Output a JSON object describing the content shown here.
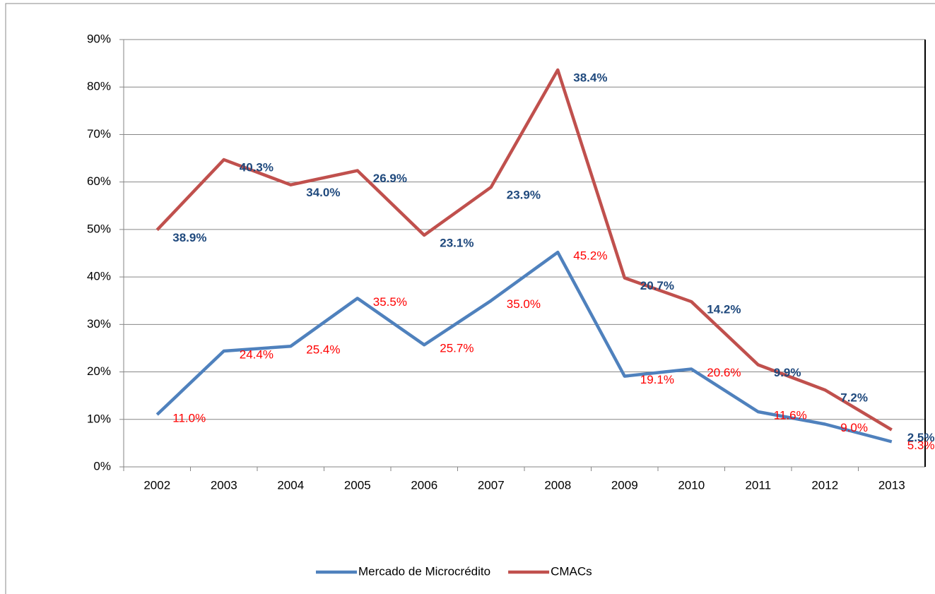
{
  "chart_data": {
    "type": "line",
    "stacked": true,
    "categories": [
      "2002",
      "2003",
      "2004",
      "2005",
      "2006",
      "2007",
      "2008",
      "2009",
      "2010",
      "2011",
      "2012",
      "2013"
    ],
    "series": [
      {
        "name": "Mercado de Microcrédito",
        "color": "#4f81bd",
        "label_color": "#ff0000",
        "label_bold": false,
        "values": [
          11.0,
          24.4,
          25.4,
          35.5,
          25.7,
          35.0,
          45.2,
          19.1,
          20.6,
          11.6,
          9.0,
          5.3
        ],
        "value_labels": [
          "11.0%",
          "24.4%",
          "25.4%",
          "35.5%",
          "25.7%",
          "35.0%",
          "45.2%",
          "19.1%",
          "20.6%",
          "11.6%",
          "9.0%",
          "5.3%"
        ]
      },
      {
        "name": "CMACs",
        "color": "#c0504d",
        "label_color": "#1f497d",
        "label_bold": true,
        "values": [
          38.9,
          40.3,
          34.0,
          26.9,
          23.1,
          23.9,
          38.4,
          20.7,
          14.2,
          9.9,
          7.2,
          2.5
        ],
        "value_labels": [
          "38.9%",
          "40.3%",
          "34.0%",
          "26.9%",
          "23.1%",
          "23.9%",
          "38.4%",
          "20.7%",
          "14.2%",
          "9.9%",
          "7.2%",
          "2.5%"
        ]
      }
    ],
    "ylim": [
      0,
      90
    ],
    "yticks": [
      {
        "value": 0,
        "label": "0%"
      },
      {
        "value": 10,
        "label": "10%"
      },
      {
        "value": 20,
        "label": "20%"
      },
      {
        "value": 30,
        "label": "30%"
      },
      {
        "value": 40,
        "label": "40%"
      },
      {
        "value": 50,
        "label": "50%"
      },
      {
        "value": 60,
        "label": "60%"
      },
      {
        "value": 70,
        "label": "70%"
      },
      {
        "value": 80,
        "label": "80%"
      },
      {
        "value": 90,
        "label": "90%"
      }
    ],
    "grid": true,
    "legend": "bottom"
  }
}
